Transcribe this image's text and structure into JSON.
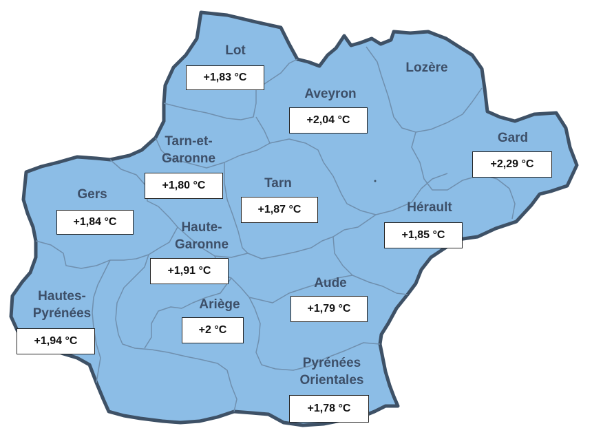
{
  "map": {
    "region_fill": "#8cbde6",
    "outline_color": "#3e5166",
    "border_color": "#6f8fae"
  },
  "departments": {
    "lot": {
      "name": "Lot",
      "temperature": "+1,83 °C"
    },
    "lozere": {
      "name": "Lozère",
      "temperature": ""
    },
    "aveyron": {
      "name": "Aveyron",
      "temperature": "+2,04 °C"
    },
    "gard": {
      "name": "Gard",
      "temperature": "+2,29 °C"
    },
    "tarn_garonne": {
      "name_line1": "Tarn-et-",
      "name_line2": "Garonne",
      "temperature": "+1,80 °C"
    },
    "tarn": {
      "name": "Tarn",
      "temperature": "+1,87 °C"
    },
    "gers": {
      "name": "Gers",
      "temperature": "+1,84 °C"
    },
    "herault": {
      "name": "Hérault",
      "temperature": "+1,85 °C"
    },
    "haute_garonne": {
      "name_line1": "Haute-",
      "name_line2": "Garonne",
      "temperature": "+1,91 °C"
    },
    "aude": {
      "name": "Aude",
      "temperature": "+1,79 °C"
    },
    "hautes_pyrenees": {
      "name_line1": "Hautes-",
      "name_line2": "Pyrénées",
      "temperature": "+1,94 °C"
    },
    "ariege": {
      "name": "Ariège",
      "temperature": "+2 °C"
    },
    "pyrenees_orientales": {
      "name_line1": "Pyrénées",
      "name_line2": "Orientales",
      "temperature": "+1,78 °C"
    }
  }
}
